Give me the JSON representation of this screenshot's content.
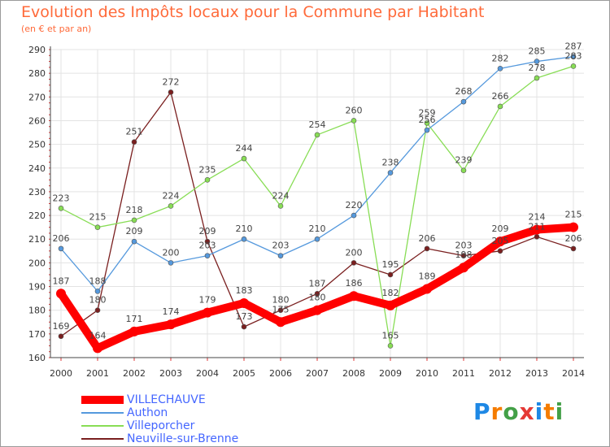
{
  "header": {
    "title": "Evolution des Impôts locaux pour la Commune par Habitant",
    "subtitle": "(en € et par an)"
  },
  "logo": {
    "letters": [
      "P",
      "r",
      "o",
      "x",
      "i",
      "t",
      "i"
    ],
    "colors": [
      "#1e88e5",
      "#f57c00",
      "#43a047",
      "#e53935",
      "#1e88e5",
      "#f57c00",
      "#43a047"
    ]
  },
  "chart_data": {
    "type": "line",
    "x": [
      "2000",
      "2001",
      "2002",
      "2003",
      "2004",
      "2005",
      "2006",
      "2007",
      "2008",
      "2009",
      "2010",
      "2011",
      "2012",
      "2013",
      "2014"
    ],
    "ylim": [
      160,
      290
    ],
    "yticks": [
      160,
      170,
      180,
      190,
      200,
      210,
      220,
      230,
      240,
      250,
      260,
      270,
      280,
      290
    ],
    "grid": true,
    "legend": "bottom-left",
    "series": [
      {
        "name": "Neuville-sur-Brenne",
        "color": "#7a1f1f",
        "values": [
          169,
          180,
          251,
          272,
          209,
          173,
          180,
          187,
          200,
          195,
          206,
          203,
          205,
          211,
          206
        ]
      },
      {
        "name": "Villeporcher",
        "color": "#88dd55",
        "values": [
          223,
          215,
          218,
          224,
          235,
          244,
          224,
          254,
          260,
          165,
          259,
          239,
          266,
          278,
          283
        ]
      },
      {
        "name": "Authon",
        "color": "#5599dd",
        "values": [
          206,
          188,
          209,
          200,
          203,
          210,
          203,
          210,
          220,
          238,
          256,
          268,
          282,
          285,
          287
        ]
      },
      {
        "name": "VILLECHAUVE",
        "color": "#ff0000",
        "values": [
          187,
          164,
          171,
          174,
          179,
          183,
          175,
          180,
          186,
          182,
          189,
          198,
          209,
          214,
          215
        ]
      }
    ],
    "legend_order": [
      "VILLECHAUVE",
      "Authon",
      "Villeporcher",
      "Neuville-sur-Brenne"
    ]
  }
}
